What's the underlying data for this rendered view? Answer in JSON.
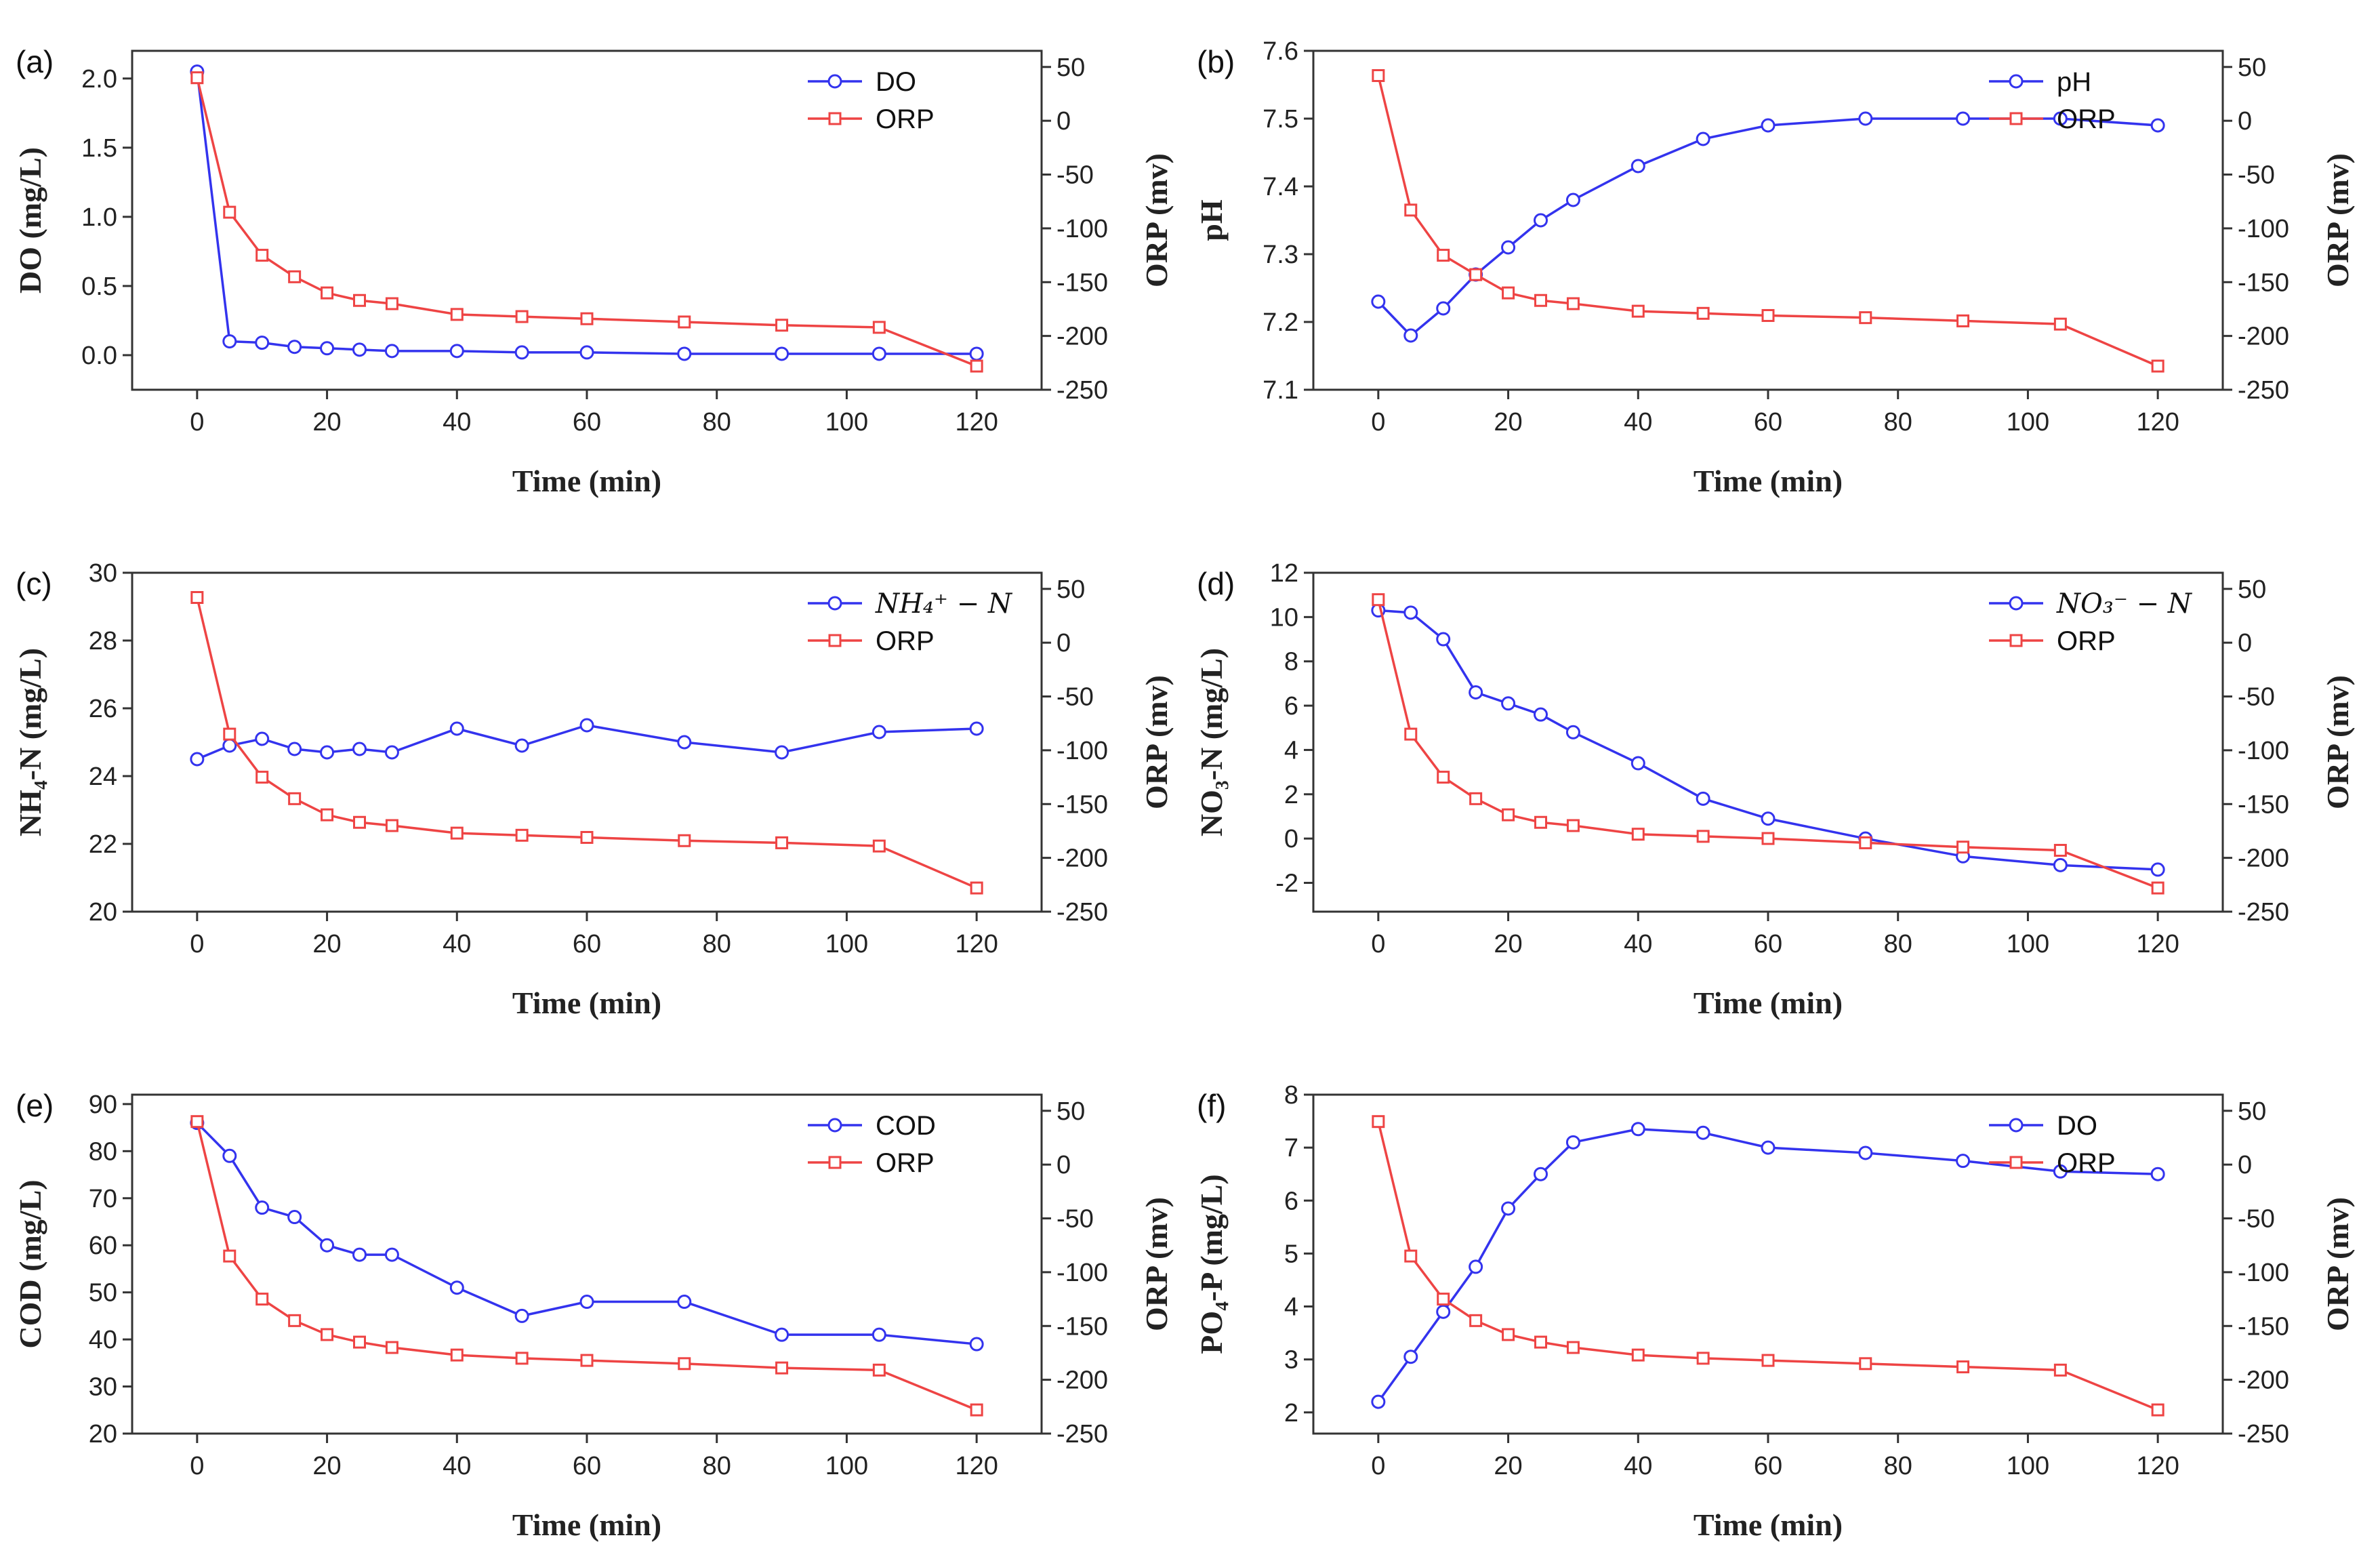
{
  "colors": {
    "primary": "#3333ee",
    "orp": "#ee4444",
    "axis": "#333333"
  },
  "chart_data": [
    {
      "panel": "(a)",
      "type": "line",
      "x": [
        0,
        5,
        10,
        15,
        20,
        25,
        30,
        40,
        50,
        60,
        75,
        90,
        105,
        120
      ],
      "xlabel": "Time (min)",
      "xlim": [
        -10,
        130
      ],
      "xticks": [
        0,
        20,
        40,
        60,
        80,
        100,
        120
      ],
      "ylabel": "DO (mg/L)",
      "ylim": [
        -0.25,
        2.2
      ],
      "yticks": [
        0.0,
        0.5,
        1.0,
        1.5,
        2.0
      ],
      "ytick_labels": [
        "0.0",
        "0.5",
        "1.0",
        "1.5",
        "2.0"
      ],
      "y2label": "ORP (mv)",
      "y2lim": [
        -250,
        65
      ],
      "y2ticks": [
        50,
        0,
        -50,
        -100,
        -150,
        -200,
        -250
      ],
      "series": [
        {
          "name": "DO",
          "axis": "left",
          "marker": "circle",
          "values": [
            2.05,
            0.1,
            0.09,
            0.06,
            0.05,
            0.04,
            0.03,
            0.03,
            0.02,
            0.02,
            0.01,
            0.01,
            0.01,
            0.01
          ]
        },
        {
          "name": "ORP",
          "axis": "right",
          "marker": "square",
          "values": [
            40,
            -85,
            -125,
            -145,
            -160,
            -167,
            -170,
            -180,
            -182,
            -184,
            -187,
            -190,
            -192,
            -228
          ]
        }
      ],
      "legend_position": "top-right"
    },
    {
      "panel": "(b)",
      "type": "line",
      "x": [
        0,
        5,
        10,
        15,
        20,
        25,
        30,
        40,
        50,
        60,
        75,
        90,
        105,
        120
      ],
      "xlabel": "Time (min)",
      "xlim": [
        -10,
        130
      ],
      "xticks": [
        0,
        20,
        40,
        60,
        80,
        100,
        120
      ],
      "ylabel": "pH",
      "ylim": [
        7.1,
        7.6
      ],
      "yticks": [
        7.1,
        7.2,
        7.3,
        7.4,
        7.5,
        7.6
      ],
      "ytick_labels": [
        "7.1",
        "7.2",
        "7.3",
        "7.4",
        "7.5",
        "7.6"
      ],
      "y2label": "ORP (mv)",
      "y2lim": [
        -250,
        65
      ],
      "y2ticks": [
        50,
        0,
        -50,
        -100,
        -150,
        -200,
        -250
      ],
      "series": [
        {
          "name": "pH",
          "axis": "left",
          "marker": "circle",
          "values": [
            7.23,
            7.18,
            7.22,
            7.27,
            7.31,
            7.35,
            7.38,
            7.43,
            7.47,
            7.49,
            7.5,
            7.5,
            7.5,
            7.49
          ]
        },
        {
          "name": "ORP",
          "axis": "right",
          "marker": "square",
          "values": [
            42,
            -83,
            -125,
            -143,
            -160,
            -167,
            -170,
            -177,
            -179,
            -181,
            -183,
            -186,
            -189,
            -228
          ]
        }
      ],
      "legend_position": "top-right"
    },
    {
      "panel": "(c)",
      "type": "line",
      "x": [
        0,
        5,
        10,
        15,
        20,
        25,
        30,
        40,
        50,
        60,
        75,
        90,
        105,
        120
      ],
      "xlabel": "Time (min)",
      "xlim": [
        -10,
        130
      ],
      "xticks": [
        0,
        20,
        40,
        60,
        80,
        100,
        120
      ],
      "ylabel": "NH₄-N (mg/L)",
      "ylim": [
        20,
        30
      ],
      "yticks": [
        20,
        22,
        24,
        26,
        28,
        30
      ],
      "ytick_labels": [
        "20",
        "22",
        "24",
        "26",
        "28",
        "30"
      ],
      "y2label": "ORP (mv)",
      "y2lim": [
        -250,
        65
      ],
      "y2ticks": [
        50,
        0,
        -50,
        -100,
        -150,
        -200,
        -250
      ],
      "series": [
        {
          "name": "NH₄⁺ − N",
          "axis": "left",
          "marker": "circle",
          "values": [
            24.5,
            24.9,
            25.1,
            24.8,
            24.7,
            24.8,
            24.7,
            25.4,
            24.9,
            25.5,
            25.0,
            24.7,
            25.3,
            25.4
          ]
        },
        {
          "name": "ORP",
          "axis": "right",
          "marker": "square",
          "values": [
            42,
            -85,
            -125,
            -145,
            -160,
            -167,
            -170,
            -177,
            -179,
            -181,
            -184,
            -186,
            -189,
            -228
          ]
        }
      ],
      "legend_position": "top-right"
    },
    {
      "panel": "(d)",
      "type": "line",
      "x": [
        0,
        5,
        10,
        15,
        20,
        25,
        30,
        40,
        50,
        60,
        75,
        90,
        105,
        120
      ],
      "xlabel": "Time (min)",
      "xlim": [
        -10,
        130
      ],
      "xticks": [
        0,
        20,
        40,
        60,
        80,
        100,
        120
      ],
      "ylabel": "NO₃-N (mg/L)",
      "ylim": [
        -3.3,
        12
      ],
      "yticks": [
        -2,
        0,
        2,
        4,
        6,
        8,
        10,
        12
      ],
      "ytick_labels": [
        "-2",
        "0",
        "2",
        "4",
        "6",
        "8",
        "10",
        "12"
      ],
      "y2label": "ORP (mv)",
      "y2lim": [
        -250,
        65
      ],
      "y2ticks": [
        50,
        0,
        -50,
        -100,
        -150,
        -200,
        -250
      ],
      "series": [
        {
          "name": "NO₃⁻ − N",
          "axis": "left",
          "marker": "circle",
          "values": [
            10.3,
            10.2,
            9.0,
            6.6,
            6.1,
            5.6,
            4.8,
            3.4,
            1.8,
            0.9,
            0.0,
            -0.8,
            -1.2,
            -1.4
          ]
        },
        {
          "name": "ORP",
          "axis": "right",
          "marker": "square",
          "values": [
            40,
            -85,
            -125,
            -145,
            -160,
            -167,
            -170,
            -178,
            -180,
            -182,
            -186,
            -190,
            -193,
            -228
          ]
        }
      ],
      "legend_position": "top-right"
    },
    {
      "panel": "(e)",
      "type": "line",
      "x": [
        0,
        5,
        10,
        15,
        20,
        25,
        30,
        40,
        50,
        60,
        75,
        90,
        105,
        120
      ],
      "xlabel": "Time (min)",
      "xlim": [
        -10,
        130
      ],
      "xticks": [
        0,
        20,
        40,
        60,
        80,
        100,
        120
      ],
      "ylabel": "COD (mg/L)",
      "ylim": [
        20,
        92
      ],
      "yticks": [
        20,
        30,
        40,
        50,
        60,
        70,
        80,
        90
      ],
      "ytick_labels": [
        "20",
        "30",
        "40",
        "50",
        "60",
        "70",
        "80",
        "90"
      ],
      "y2label": "ORP (mv)",
      "y2lim": [
        -250,
        65
      ],
      "y2ticks": [
        50,
        0,
        -50,
        -100,
        -150,
        -200,
        -250
      ],
      "series": [
        {
          "name": "COD",
          "axis": "left",
          "marker": "circle",
          "values": [
            86,
            79,
            68,
            66,
            60,
            58,
            58,
            51,
            45,
            48,
            48,
            41,
            41,
            39
          ]
        },
        {
          "name": "ORP",
          "axis": "right",
          "marker": "square",
          "values": [
            40,
            -85,
            -125,
            -145,
            -158,
            -165,
            -170,
            -177,
            -180,
            -182,
            -185,
            -189,
            -191,
            -228
          ]
        }
      ],
      "legend_position": "top-right"
    },
    {
      "panel": "(f)",
      "type": "line",
      "x": [
        0,
        5,
        10,
        15,
        20,
        25,
        30,
        40,
        50,
        60,
        75,
        90,
        105,
        120
      ],
      "xlabel": "Time (min)",
      "xlim": [
        -10,
        130
      ],
      "xticks": [
        0,
        20,
        40,
        60,
        80,
        100,
        120
      ],
      "ylabel": "PO₄-P (mg/L)",
      "ylim": [
        1.6,
        8
      ],
      "yticks": [
        2,
        3,
        4,
        5,
        6,
        7,
        8
      ],
      "ytick_labels": [
        "2",
        "3",
        "4",
        "5",
        "6",
        "7",
        "8"
      ],
      "y2label": "ORP (mv)",
      "y2lim": [
        -250,
        65
      ],
      "y2ticks": [
        50,
        0,
        -50,
        -100,
        -150,
        -200,
        -250
      ],
      "series": [
        {
          "name": "DO",
          "axis": "left",
          "marker": "circle",
          "values": [
            2.2,
            3.05,
            3.9,
            4.75,
            5.85,
            6.5,
            7.1,
            7.35,
            7.28,
            7.0,
            6.9,
            6.75,
            6.55,
            6.5
          ]
        },
        {
          "name": "ORP",
          "axis": "right",
          "marker": "square",
          "values": [
            40,
            -85,
            -125,
            -145,
            -158,
            -165,
            -170,
            -177,
            -180,
            -182,
            -185,
            -188,
            -191,
            -228
          ]
        }
      ],
      "legend_position": "top-right"
    }
  ]
}
